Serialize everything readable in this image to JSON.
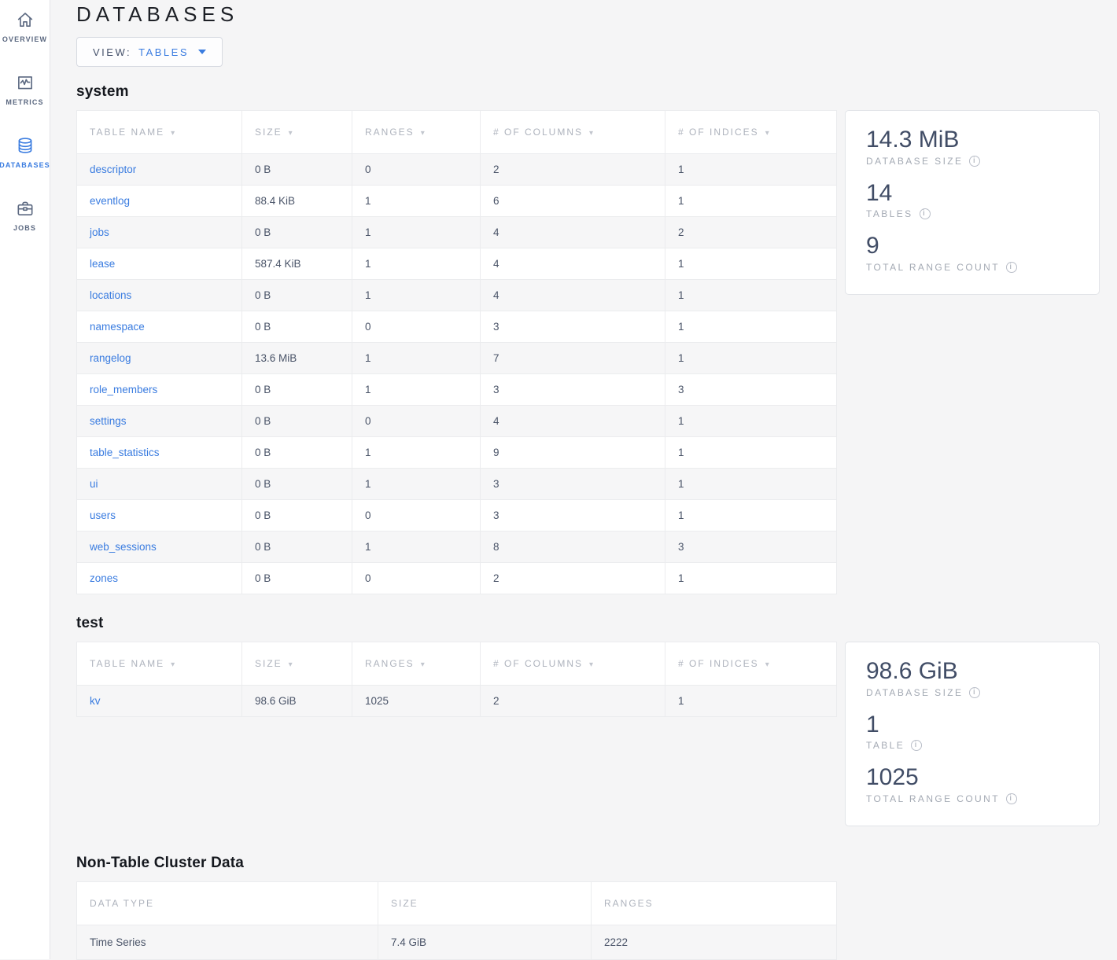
{
  "header": {
    "title": "DATABASES",
    "view_label": "VIEW:",
    "view_value": "TABLES"
  },
  "sidebar": {
    "items": [
      {
        "label": "OVERVIEW",
        "icon": "home-icon",
        "active": false
      },
      {
        "label": "METRICS",
        "icon": "metrics-chart-icon",
        "active": false
      },
      {
        "label": "DATABASES",
        "icon": "database-icon",
        "active": true
      },
      {
        "label": "JOBS",
        "icon": "briefcase-icon",
        "active": false
      }
    ]
  },
  "table_columns": [
    "TABLE NAME",
    "SIZE",
    "RANGES",
    "# OF COLUMNS",
    "# OF INDICES"
  ],
  "databases": [
    {
      "name": "system",
      "rows": [
        [
          "descriptor",
          "0 B",
          "0",
          "2",
          "1"
        ],
        [
          "eventlog",
          "88.4 KiB",
          "1",
          "6",
          "1"
        ],
        [
          "jobs",
          "0 B",
          "1",
          "4",
          "2"
        ],
        [
          "lease",
          "587.4 KiB",
          "1",
          "4",
          "1"
        ],
        [
          "locations",
          "0 B",
          "1",
          "4",
          "1"
        ],
        [
          "namespace",
          "0 B",
          "0",
          "3",
          "1"
        ],
        [
          "rangelog",
          "13.6 MiB",
          "1",
          "7",
          "1"
        ],
        [
          "role_members",
          "0 B",
          "1",
          "3",
          "3"
        ],
        [
          "settings",
          "0 B",
          "0",
          "4",
          "1"
        ],
        [
          "table_statistics",
          "0 B",
          "1",
          "9",
          "1"
        ],
        [
          "ui",
          "0 B",
          "1",
          "3",
          "1"
        ],
        [
          "users",
          "0 B",
          "0",
          "3",
          "1"
        ],
        [
          "web_sessions",
          "0 B",
          "1",
          "8",
          "3"
        ],
        [
          "zones",
          "0 B",
          "0",
          "2",
          "1"
        ]
      ],
      "summary": [
        {
          "value": "14.3 MiB",
          "label": "DATABASE SIZE"
        },
        {
          "value": "14",
          "label": "TABLES"
        },
        {
          "value": "9",
          "label": "TOTAL RANGE COUNT"
        }
      ]
    },
    {
      "name": "test",
      "rows": [
        [
          "kv",
          "98.6 GiB",
          "1025",
          "2",
          "1"
        ]
      ],
      "summary": [
        {
          "value": "98.6 GiB",
          "label": "DATABASE SIZE"
        },
        {
          "value": "1",
          "label": "TABLE"
        },
        {
          "value": "1025",
          "label": "TOTAL RANGE COUNT"
        }
      ]
    }
  ],
  "non_table": {
    "title": "Non-Table Cluster Data",
    "columns": [
      "DATA TYPE",
      "SIZE",
      "RANGES"
    ],
    "rows": [
      [
        "Time Series",
        "7.4 GiB",
        "2222"
      ]
    ]
  },
  "colors": {
    "accent_blue": "#3a7ce0",
    "value_text": "#414d66",
    "muted_label": "#a4aab4"
  }
}
